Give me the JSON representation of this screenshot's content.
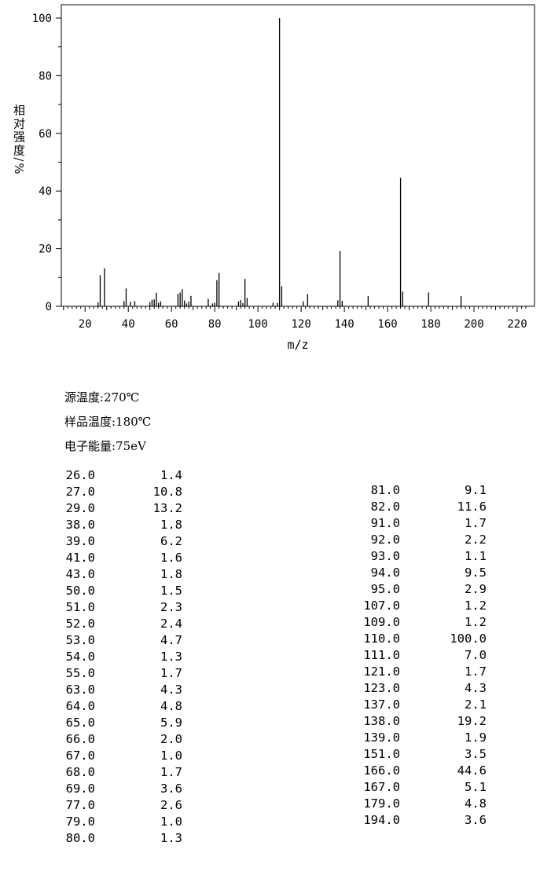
{
  "chart_data": {
    "type": "bar",
    "xlabel": "m/z",
    "ylabel": "相对强度/%",
    "xlim": [
      9,
      228
    ],
    "ylim": [
      0,
      100
    ],
    "xticks": [
      20,
      40,
      60,
      80,
      100,
      120,
      140,
      160,
      180,
      200,
      220
    ],
    "yticks": [
      0,
      20,
      40,
      60,
      80,
      100
    ],
    "grid": false,
    "peaks": [
      {
        "mz": 26,
        "intensity": 1.4
      },
      {
        "mz": 27,
        "intensity": 10.8
      },
      {
        "mz": 29,
        "intensity": 13.2
      },
      {
        "mz": 38,
        "intensity": 1.8
      },
      {
        "mz": 39,
        "intensity": 6.2
      },
      {
        "mz": 41,
        "intensity": 1.6
      },
      {
        "mz": 43,
        "intensity": 1.8
      },
      {
        "mz": 50,
        "intensity": 1.5
      },
      {
        "mz": 51,
        "intensity": 2.3
      },
      {
        "mz": 52,
        "intensity": 2.4
      },
      {
        "mz": 53,
        "intensity": 4.7
      },
      {
        "mz": 54,
        "intensity": 1.3
      },
      {
        "mz": 55,
        "intensity": 1.7
      },
      {
        "mz": 63,
        "intensity": 4.3
      },
      {
        "mz": 64,
        "intensity": 4.8
      },
      {
        "mz": 65,
        "intensity": 5.9
      },
      {
        "mz": 66,
        "intensity": 2.0
      },
      {
        "mz": 67,
        "intensity": 1.0
      },
      {
        "mz": 68,
        "intensity": 1.7
      },
      {
        "mz": 69,
        "intensity": 3.6
      },
      {
        "mz": 77,
        "intensity": 2.6
      },
      {
        "mz": 79,
        "intensity": 1.0
      },
      {
        "mz": 80,
        "intensity": 1.3
      },
      {
        "mz": 81,
        "intensity": 9.1
      },
      {
        "mz": 82,
        "intensity": 11.6
      },
      {
        "mz": 91,
        "intensity": 1.7
      },
      {
        "mz": 92,
        "intensity": 2.2
      },
      {
        "mz": 93,
        "intensity": 1.1
      },
      {
        "mz": 94,
        "intensity": 9.5
      },
      {
        "mz": 95,
        "intensity": 2.9
      },
      {
        "mz": 107,
        "intensity": 1.2
      },
      {
        "mz": 109,
        "intensity": 1.2
      },
      {
        "mz": 110,
        "intensity": 100.0
      },
      {
        "mz": 111,
        "intensity": 7.0
      },
      {
        "mz": 121,
        "intensity": 1.7
      },
      {
        "mz": 123,
        "intensity": 4.3
      },
      {
        "mz": 137,
        "intensity": 2.1
      },
      {
        "mz": 138,
        "intensity": 19.2
      },
      {
        "mz": 139,
        "intensity": 1.9
      },
      {
        "mz": 151,
        "intensity": 3.5
      },
      {
        "mz": 166,
        "intensity": 44.6
      },
      {
        "mz": 167,
        "intensity": 5.1
      },
      {
        "mz": 179,
        "intensity": 4.8
      },
      {
        "mz": 194,
        "intensity": 3.6
      }
    ]
  },
  "conditions": [
    {
      "label": "源温度",
      "value": "270℃"
    },
    {
      "label": "样品温度",
      "value": "180℃"
    },
    {
      "label": "电子能量",
      "value": "75eV"
    }
  ],
  "table_left": [
    [
      "26.0",
      "1.4"
    ],
    [
      "27.0",
      "10.8"
    ],
    [
      "29.0",
      "13.2"
    ],
    [
      "38.0",
      "1.8"
    ],
    [
      "39.0",
      "6.2"
    ],
    [
      "41.0",
      "1.6"
    ],
    [
      "43.0",
      "1.8"
    ],
    [
      "50.0",
      "1.5"
    ],
    [
      "51.0",
      "2.3"
    ],
    [
      "52.0",
      "2.4"
    ],
    [
      "53.0",
      "4.7"
    ],
    [
      "54.0",
      "1.3"
    ],
    [
      "55.0",
      "1.7"
    ],
    [
      "63.0",
      "4.3"
    ],
    [
      "64.0",
      "4.8"
    ],
    [
      "65.0",
      "5.9"
    ],
    [
      "66.0",
      "2.0"
    ],
    [
      "67.0",
      "1.0"
    ],
    [
      "68.0",
      "1.7"
    ],
    [
      "69.0",
      "3.6"
    ],
    [
      "77.0",
      "2.6"
    ],
    [
      "79.0",
      "1.0"
    ],
    [
      "80.0",
      "1.3"
    ]
  ],
  "table_right": [
    [
      "81.0",
      "9.1"
    ],
    [
      "82.0",
      "11.6"
    ],
    [
      "91.0",
      "1.7"
    ],
    [
      "92.0",
      "2.2"
    ],
    [
      "93.0",
      "1.1"
    ],
    [
      "94.0",
      "9.5"
    ],
    [
      "95.0",
      "2.9"
    ],
    [
      "107.0",
      "1.2"
    ],
    [
      "109.0",
      "1.2"
    ],
    [
      "110.0",
      "100.0"
    ],
    [
      "111.0",
      "7.0"
    ],
    [
      "121.0",
      "1.7"
    ],
    [
      "123.0",
      "4.3"
    ],
    [
      "137.0",
      "2.1"
    ],
    [
      "138.0",
      "19.2"
    ],
    [
      "139.0",
      "1.9"
    ],
    [
      "151.0",
      "3.5"
    ],
    [
      "166.0",
      "44.6"
    ],
    [
      "167.0",
      "5.1"
    ],
    [
      "179.0",
      "4.8"
    ],
    [
      "194.0",
      "3.6"
    ]
  ]
}
